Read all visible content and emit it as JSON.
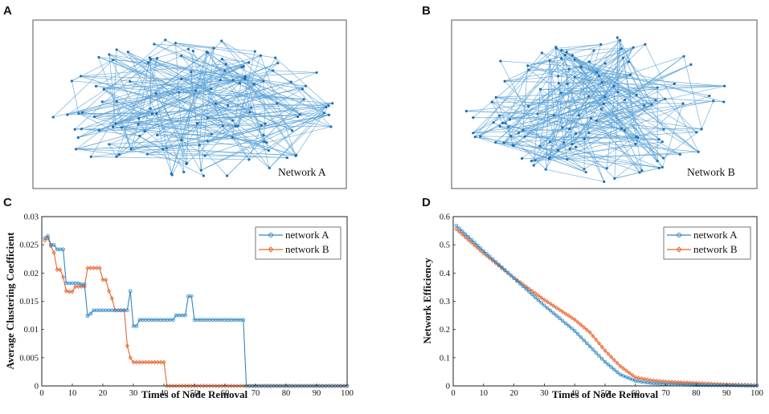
{
  "panels": {
    "A": {
      "letter": "A",
      "label": "Network A"
    },
    "B": {
      "letter": "B",
      "label": "Network B"
    },
    "C": {
      "letter": "C"
    },
    "D": {
      "letter": "D"
    }
  },
  "colors": {
    "network_a": "#2f86c4",
    "network_b": "#e8642c",
    "edge": "#5ca2d6",
    "node": "#1f6fb0"
  },
  "chart_data": [
    {
      "panel": "C",
      "type": "line",
      "xlabel": "Times of Node Removal",
      "ylabel": "Average Clustering Coefficient",
      "xlim": [
        0,
        100
      ],
      "ylim": [
        0,
        0.03
      ],
      "xticks": [
        "0",
        "10",
        "20",
        "30",
        "40",
        "50",
        "60",
        "70",
        "80",
        "90",
        "100"
      ],
      "yticks": [
        "0",
        "0.005",
        "0.01",
        "0.015",
        "0.02",
        "0.025",
        "0.03"
      ],
      "legend_position": "top-right",
      "series": [
        {
          "name": "network A",
          "marker": "circle",
          "segments": [
            [
              1,
              2,
              0.0262
            ],
            [
              2,
              3,
              0.0266
            ],
            [
              3,
              5,
              0.025
            ],
            [
              5,
              8,
              0.0242
            ],
            [
              8,
              13,
              0.0182
            ],
            [
              13,
              15,
              0.018
            ],
            [
              15,
              16,
              0.0124
            ],
            [
              16,
              17,
              0.0128
            ],
            [
              17,
              29,
              0.0134
            ],
            [
              29,
              30,
              0.0168
            ],
            [
              30,
              31,
              0.0106
            ],
            [
              31,
              32,
              0.0106
            ],
            [
              32,
              44,
              0.0117
            ],
            [
              44,
              48,
              0.0125
            ],
            [
              48,
              50,
              0.0159
            ],
            [
              50,
              67,
              0.0117
            ],
            [
              67,
              100,
              0.0
            ]
          ]
        },
        {
          "name": "network B",
          "marker": "diamond",
          "segments": [
            [
              1,
              2,
              0.0258
            ],
            [
              2,
              3,
              0.0262
            ],
            [
              3,
              4,
              0.0248
            ],
            [
              4,
              5,
              0.0236
            ],
            [
              5,
              7,
              0.0206
            ],
            [
              7,
              8,
              0.0193
            ],
            [
              8,
              9,
              0.0168
            ],
            [
              9,
              11,
              0.0167
            ],
            [
              11,
              15,
              0.0176
            ],
            [
              15,
              20,
              0.0209
            ],
            [
              20,
              22,
              0.0188
            ],
            [
              22,
              23,
              0.0168
            ],
            [
              23,
              24,
              0.0155
            ],
            [
              24,
              28,
              0.0134
            ],
            [
              28,
              29,
              0.0071
            ],
            [
              29,
              30,
              0.005
            ],
            [
              30,
              41,
              0.0042
            ],
            [
              41,
              100,
              0.0
            ]
          ]
        }
      ]
    },
    {
      "panel": "D",
      "type": "line",
      "xlabel": "Times of Node Removal",
      "ylabel": "Network Efficiency",
      "xlim": [
        0,
        100
      ],
      "ylim": [
        0,
        0.6
      ],
      "xticks": [
        "0",
        "10",
        "20",
        "30",
        "40",
        "50",
        "60",
        "70",
        "80",
        "90",
        "100"
      ],
      "yticks": [
        "0",
        "0.1",
        "0.2",
        "0.3",
        "0.4",
        "0.5",
        "0.6"
      ],
      "legend_position": "top-right",
      "series": [
        {
          "name": "network A",
          "marker": "circle",
          "points": [
            [
              1,
              0.568
            ],
            [
              10,
              0.478
            ],
            [
              20,
              0.382
            ],
            [
              30,
              0.285
            ],
            [
              40,
              0.195
            ],
            [
              50,
              0.085
            ],
            [
              55,
              0.04
            ],
            [
              60,
              0.018
            ],
            [
              65,
              0.01
            ],
            [
              70,
              0.006
            ],
            [
              80,
              0.003
            ],
            [
              90,
              0.002
            ],
            [
              100,
              0.001
            ]
          ]
        },
        {
          "name": "network B",
          "marker": "diamond",
          "points": [
            [
              1,
              0.556
            ],
            [
              10,
              0.47
            ],
            [
              20,
              0.383
            ],
            [
              30,
              0.305
            ],
            [
              40,
              0.235
            ],
            [
              45,
              0.19
            ],
            [
              50,
              0.125
            ],
            [
              55,
              0.07
            ],
            [
              60,
              0.03
            ],
            [
              65,
              0.02
            ],
            [
              70,
              0.015
            ],
            [
              80,
              0.01
            ],
            [
              90,
              0.005
            ],
            [
              100,
              0.002
            ]
          ]
        }
      ]
    }
  ]
}
